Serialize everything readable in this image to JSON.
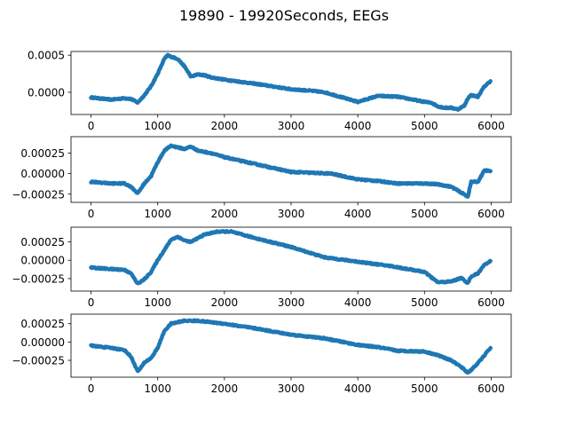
{
  "title": "19890 - 19920Seconds, EEGs",
  "colors": {
    "series": "#1f77b4",
    "axes": "#000000",
    "background": "#ffffff"
  },
  "chart_data": [
    {
      "type": "line",
      "grid": false,
      "xlim": [
        -300,
        6300
      ],
      "ylim": [
        -0.0003,
        0.00055
      ],
      "xticks": [
        0,
        1000,
        2000,
        3000,
        4000,
        5000,
        6000
      ],
      "xtick_labels": [
        "0",
        "1000",
        "2000",
        "3000",
        "4000",
        "5000",
        "6000"
      ],
      "yticks": [
        0.0,
        0.0005
      ],
      "ytick_labels": [
        "0.0000",
        "0.0005"
      ],
      "x": [
        0,
        300,
        500,
        600,
        700,
        800,
        900,
        1000,
        1100,
        1150,
        1200,
        1300,
        1400,
        1500,
        1600,
        1700,
        1800,
        2000,
        2500,
        3000,
        3300,
        3500,
        4000,
        4300,
        4600,
        5000,
        5100,
        5200,
        5300,
        5400,
        5500,
        5600,
        5650,
        5700,
        5800,
        5900,
        5990
      ],
      "y": [
        -7e-05,
        -0.0001,
        -8e-05,
        -9e-05,
        -0.00014,
        -4e-05,
        8e-05,
        0.00025,
        0.00045,
        0.0005,
        0.00048,
        0.00045,
        0.00035,
        0.00021,
        0.00024,
        0.00023,
        0.0002,
        0.00017,
        0.00011,
        4e-05,
        2e-05,
        0.0,
        -0.00013,
        -5e-05,
        -6e-05,
        -0.00013,
        -0.00014,
        -0.00019,
        -0.00021,
        -0.00021,
        -0.00023,
        -0.00018,
        -8e-05,
        -4e-05,
        -6e-05,
        8e-05,
        0.00015
      ]
    },
    {
      "type": "line",
      "grid": false,
      "xlim": [
        -300,
        6300
      ],
      "ylim": [
        -0.00035,
        0.00045
      ],
      "xticks": [
        0,
        1000,
        2000,
        3000,
        4000,
        5000,
        6000
      ],
      "xtick_labels": [
        "0",
        "1000",
        "2000",
        "3000",
        "4000",
        "5000",
        "6000"
      ],
      "yticks": [
        -0.00025,
        0.0,
        0.00025
      ],
      "ytick_labels": [
        "−0.00025",
        "0.00000",
        "0.00025"
      ],
      "x": [
        0,
        300,
        500,
        600,
        700,
        800,
        900,
        1000,
        1100,
        1200,
        1400,
        1500,
        1600,
        1800,
        2000,
        2500,
        3000,
        3300,
        3600,
        4000,
        4300,
        4600,
        5000,
        5200,
        5400,
        5550,
        5650,
        5700,
        5800,
        5900,
        5990
      ],
      "y": [
        -0.0001,
        -0.00012,
        -0.00012,
        -0.00016,
        -0.00024,
        -0.00012,
        -3e-05,
        0.00014,
        0.00028,
        0.00034,
        0.0003,
        0.00033,
        0.00028,
        0.00025,
        0.0002,
        0.00011,
        2e-05,
        1e-05,
        -0.0,
        -7e-05,
        -9e-05,
        -0.00012,
        -0.00012,
        -0.00013,
        -0.00016,
        -0.00023,
        -0.00028,
        -0.0001,
        -0.0001,
        4e-05,
        3e-05
      ]
    },
    {
      "type": "line",
      "grid": false,
      "xlim": [
        -300,
        6300
      ],
      "ylim": [
        -0.00042,
        0.00045
      ],
      "xticks": [
        0,
        1000,
        2000,
        3000,
        4000,
        5000,
        6000
      ],
      "xtick_labels": [
        "0",
        "1000",
        "2000",
        "3000",
        "4000",
        "5000",
        "6000"
      ],
      "yticks": [
        -0.00025,
        0.0,
        0.00025
      ],
      "ytick_labels": [
        "−0.00025",
        "0.00000",
        "0.00025"
      ],
      "x": [
        0,
        300,
        500,
        600,
        700,
        800,
        900,
        1000,
        1100,
        1200,
        1300,
        1400,
        1500,
        1700,
        1900,
        2100,
        2300,
        2600,
        3000,
        3500,
        4000,
        4500,
        5000,
        5200,
        5400,
        5550,
        5650,
        5700,
        5800,
        5900,
        5990
      ],
      "y": [
        -0.0001,
        -0.00012,
        -0.00013,
        -0.00018,
        -0.00032,
        -0.00026,
        -0.00016,
        0.0,
        0.00014,
        0.00028,
        0.00032,
        0.00027,
        0.00025,
        0.00035,
        0.00039,
        0.00039,
        0.00034,
        0.00027,
        0.00018,
        4e-05,
        -2e-05,
        -8e-05,
        -0.00016,
        -0.0003,
        -0.00029,
        -0.00024,
        -0.00031,
        -0.00022,
        -0.00018,
        -6e-05,
        -1e-05
      ]
    },
    {
      "type": "line",
      "grid": false,
      "xlim": [
        -300,
        6300
      ],
      "ylim": [
        -0.00048,
        0.00038
      ],
      "xticks": [
        0,
        1000,
        2000,
        3000,
        4000,
        5000,
        6000
      ],
      "xtick_labels": [
        "0",
        "1000",
        "2000",
        "3000",
        "4000",
        "5000",
        "6000"
      ],
      "yticks": [
        -0.00025,
        0.0,
        0.00025
      ],
      "ytick_labels": [
        "−0.00025",
        "0.00000",
        "0.00025"
      ],
      "x": [
        0,
        300,
        500,
        600,
        700,
        750,
        800,
        900,
        1000,
        1100,
        1200,
        1400,
        1600,
        2000,
        2500,
        3000,
        3500,
        4000,
        4300,
        4600,
        5000,
        5200,
        5400,
        5550,
        5650,
        5700,
        5800,
        5900,
        5990
      ],
      "y": [
        -5e-05,
        -8e-05,
        -0.00011,
        -0.0002,
        -0.0004,
        -0.00035,
        -0.00028,
        -0.00022,
        -8e-05,
        0.00015,
        0.00025,
        0.00029,
        0.00029,
        0.00025,
        0.00018,
        0.0001,
        5e-05,
        -4e-05,
        -7e-05,
        -0.00012,
        -0.00013,
        -0.00018,
        -0.00025,
        -0.00034,
        -0.00042,
        -0.00038,
        -0.00029,
        -0.00018,
        -8e-05
      ]
    }
  ]
}
